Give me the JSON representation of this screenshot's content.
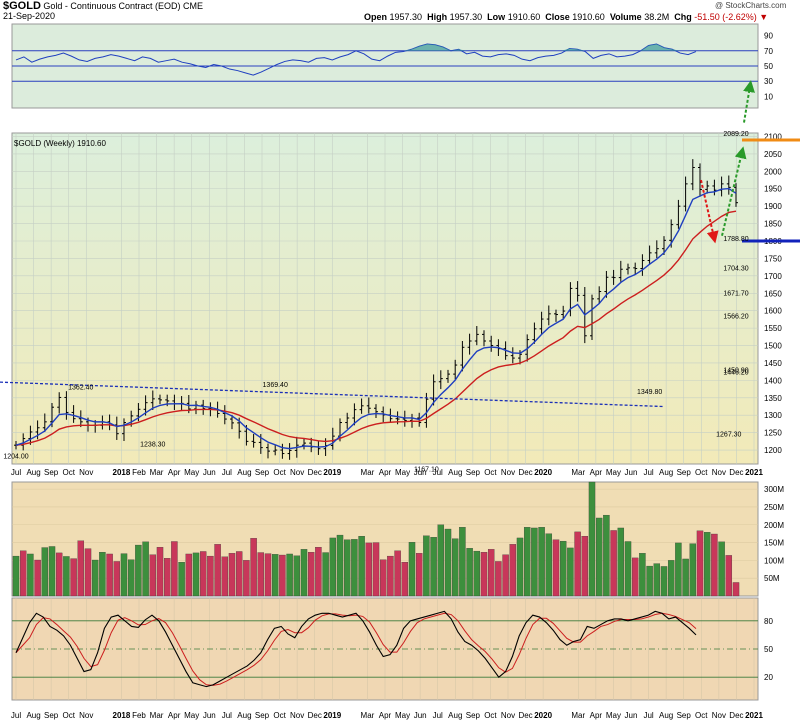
{
  "header": {
    "symbol": "$GOLD",
    "name": "Gold - Continuous Contract (EOD)",
    "exchange": "CME",
    "date": "21-Sep-2020",
    "open_label": "Open",
    "open": "1957.30",
    "high_label": "High",
    "high": "1957.30",
    "low_label": "Low",
    "low": "1910.60",
    "close_label": "Close",
    "close": "1910.60",
    "volume_label": "Volume",
    "volume": "38.2M",
    "chg_label": "Chg",
    "chg": "-51.50 (-2.62%)",
    "watermark": "@ StockCharts.com"
  },
  "colors": {
    "rsi_bg": "#dcecdc",
    "price_bg_top": "#dcefdc",
    "price_bg_bottom": "#f2eab8",
    "volume_bg": "#f0ddb4",
    "stoch_bg": "#f0d7b3",
    "price_line": "#000080",
    "ema_short": "#1f3fc0",
    "ema_long": "#cc1f1f",
    "vol_up": "#3d8f3d",
    "vol_down": "#c8375a",
    "trend_line": "#1a2fb8",
    "support_line": "#1122bb",
    "resistance_line": "#f08b14",
    "ellipse_orange": "#f08b14",
    "ellipse_blue": "#1530c8",
    "arrow_red": "#e01818",
    "arrow_green": "#2a9a2a"
  },
  "chart_data": {
    "type": "line",
    "price_panel_label": "$GOLD (Weekly) 1910.60",
    "x_axis": {
      "labels": [
        "Jul",
        "Aug",
        "Sep",
        "Oct",
        "Nov",
        "2018",
        "Feb",
        "Mar",
        "Apr",
        "May",
        "Jun",
        "Jul",
        "Aug",
        "Sep",
        "Oct",
        "Nov",
        "Dec",
        "2019",
        "Mar",
        "Apr",
        "May",
        "Jun",
        "Jul",
        "Aug",
        "Sep",
        "Oct",
        "Nov",
        "Dec",
        "2020",
        "Mar",
        "Apr",
        "May",
        "Jun",
        "Jul",
        "Aug",
        "Sep",
        "Oct",
        "Nov",
        "Dec",
        "2021"
      ],
      "positions": [
        0,
        1,
        2,
        3,
        4,
        6,
        7,
        8,
        9,
        10,
        11,
        12,
        13,
        14,
        15,
        16,
        17,
        18,
        20,
        21,
        22,
        23,
        24,
        25,
        26,
        27,
        28,
        29,
        30,
        32,
        33,
        34,
        35,
        36,
        37,
        38,
        39,
        40,
        41,
        42
      ]
    },
    "rsi": {
      "ticks": [
        90,
        70,
        50,
        30,
        10
      ],
      "lines": [
        70,
        50,
        30
      ],
      "values": [
        58,
        62,
        55,
        59,
        62,
        64,
        67,
        63,
        58,
        56,
        60,
        62,
        65,
        63,
        60,
        57,
        62,
        60,
        55,
        57,
        59,
        55,
        53,
        50,
        48,
        52,
        50,
        46,
        44,
        41,
        38,
        42,
        47,
        52,
        56,
        58,
        57,
        55,
        60,
        61,
        58,
        62,
        65,
        70,
        66,
        59,
        57,
        63,
        68,
        69,
        72,
        76,
        79,
        78,
        75,
        70,
        72,
        66,
        68,
        63,
        62,
        65,
        66,
        64,
        59,
        57,
        61,
        63,
        64,
        67,
        73,
        72,
        69,
        60,
        64,
        66,
        62,
        63,
        65,
        70,
        77,
        79,
        74,
        72,
        67,
        65,
        69
      ]
    },
    "price": {
      "y_ticks": [
        2100,
        2050,
        2000,
        1950,
        1900,
        1850,
        1800,
        1750,
        1700,
        1650,
        1600,
        1550,
        1500,
        1450,
        1400,
        1350,
        1300,
        1250,
        1200
      ],
      "ylim": [
        1160,
        2110
      ],
      "close": [
        1214,
        1233,
        1252,
        1264,
        1281,
        1323,
        1351,
        1308,
        1290,
        1281,
        1271,
        1271,
        1281,
        1272,
        1247,
        1279,
        1298,
        1317,
        1336,
        1347,
        1344,
        1341,
        1333,
        1334,
        1318,
        1329,
        1319,
        1318,
        1305,
        1289,
        1278,
        1254,
        1225,
        1222,
        1207,
        1197,
        1200,
        1190,
        1199,
        1214,
        1220,
        1209,
        1204,
        1213,
        1240,
        1279,
        1292,
        1316,
        1327,
        1320,
        1310,
        1301,
        1290,
        1289,
        1285,
        1292,
        1279,
        1346,
        1396,
        1405,
        1418,
        1444,
        1495,
        1513,
        1532,
        1513,
        1500,
        1491,
        1471,
        1464,
        1475,
        1517,
        1548,
        1576,
        1591,
        1589,
        1599,
        1664,
        1644,
        1528,
        1634,
        1655,
        1696,
        1695,
        1719,
        1723,
        1721,
        1744,
        1766,
        1778,
        1802,
        1847,
        1900,
        1964,
        2011,
        1948,
        1958,
        1946,
        1964,
        1954,
        1910
      ],
      "annotations": [
        {
          "label": "1204.00",
          "x": 0,
          "value": 1204
        },
        {
          "label": "1362.40",
          "x": 9,
          "value": 1362.4
        },
        {
          "label": "1238.30",
          "x": 19,
          "value": 1238.3
        },
        {
          "label": "1369.40",
          "x": 36,
          "value": 1369.4
        },
        {
          "label": "1167.10",
          "x": 57,
          "value": 1167.1
        },
        {
          "label": "1349.80",
          "x": 88,
          "value": 1349.8
        },
        {
          "label": "1267.30",
          "x": 99,
          "value": 1267.3
        },
        {
          "label": "1566.20",
          "x": 117,
          "value": 1566.2
        },
        {
          "label": "1446.20",
          "x": 130,
          "value": 1446.2
        },
        {
          "label": "1450.90",
          "x": 148,
          "value": 1450.9
        },
        {
          "label": "1704.30",
          "x": 149,
          "value": 1704.3
        },
        {
          "label": "1788.80",
          "x": 150,
          "value": 1788.8
        },
        {
          "label": "1671.70",
          "x": 160,
          "value": 1671.7
        },
        {
          "label": "2089.20",
          "x": 169,
          "value": 2089.2
        }
      ],
      "support_level": 1800,
      "resistance_level": 2089.2
    },
    "volume": {
      "y_ticks": [
        "300M",
        "250M",
        "200M",
        "150M",
        "100M",
        "50M"
      ],
      "tick_values": [
        300,
        250,
        200,
        150,
        100,
        50
      ],
      "ylim": [
        0,
        320
      ],
      "values_millions": [
        112,
        127,
        118,
        101,
        136,
        139,
        121,
        111,
        105,
        155,
        133,
        101,
        123,
        118,
        97,
        119,
        102,
        143,
        152,
        116,
        137,
        106,
        153,
        95,
        118,
        121,
        125,
        112,
        145,
        110,
        120,
        125,
        100,
        162,
        122,
        119,
        117,
        115,
        118,
        113,
        131,
        123,
        137,
        122,
        163,
        171,
        158,
        159,
        168,
        149,
        150,
        102,
        112,
        127,
        95,
        151,
        120,
        169,
        165,
        200,
        188,
        161,
        193,
        134,
        126,
        123,
        131,
        97,
        116,
        145,
        163,
        193,
        191,
        193,
        175,
        158,
        154,
        135,
        180,
        168,
        320,
        219,
        227,
        184,
        191,
        153,
        107,
        120,
        84,
        91,
        83,
        100,
        149,
        104,
        147,
        183,
        179,
        174,
        152,
        114,
        38
      ],
      "direction": [
        1,
        0,
        1,
        0,
        1,
        1,
        0,
        1,
        0,
        0,
        0,
        1,
        1,
        0,
        0,
        1,
        1,
        1,
        1,
        0,
        0,
        0,
        0,
        1,
        0,
        1,
        0,
        0,
        0,
        0,
        0,
        0,
        0,
        0,
        0,
        0,
        1,
        0,
        1,
        1,
        1,
        0,
        0,
        1,
        1,
        1,
        1,
        1,
        1,
        0,
        0,
        0,
        0,
        0,
        0,
        1,
        0,
        1,
        1,
        1,
        1,
        1,
        1,
        1,
        1,
        0,
        0,
        0,
        0,
        0,
        1,
        1,
        1,
        1,
        1,
        0,
        1,
        1,
        0,
        0,
        1,
        1,
        1,
        0,
        1,
        1,
        0,
        1,
        1,
        1,
        1,
        1,
        1,
        1,
        1,
        0,
        1,
        0,
        1,
        0,
        0
      ]
    },
    "stochastic": {
      "ticks": [
        80,
        50,
        20
      ],
      "k_values": [
        46,
        62,
        78,
        88,
        84,
        74,
        70,
        64,
        54,
        40,
        26,
        28,
        46,
        72,
        84,
        86,
        80,
        74,
        73,
        81,
        86,
        80,
        68,
        54,
        40,
        26,
        14,
        12,
        10,
        12,
        16,
        20,
        24,
        28,
        32,
        38,
        46,
        60,
        72,
        74,
        66,
        62,
        74,
        82,
        86,
        88,
        88,
        86,
        84,
        86,
        88,
        80,
        68,
        54,
        42,
        44,
        54,
        72,
        80,
        82,
        84,
        86,
        88,
        90,
        82,
        68,
        58,
        54,
        48,
        40,
        30,
        20,
        26,
        42,
        64,
        78,
        86,
        84,
        78,
        70,
        60,
        54,
        58,
        60,
        74,
        72,
        76,
        80,
        82,
        82,
        80,
        82,
        84,
        86,
        90,
        88,
        82,
        84,
        78,
        72,
        65
      ],
      "d_smoothing": 3
    }
  }
}
